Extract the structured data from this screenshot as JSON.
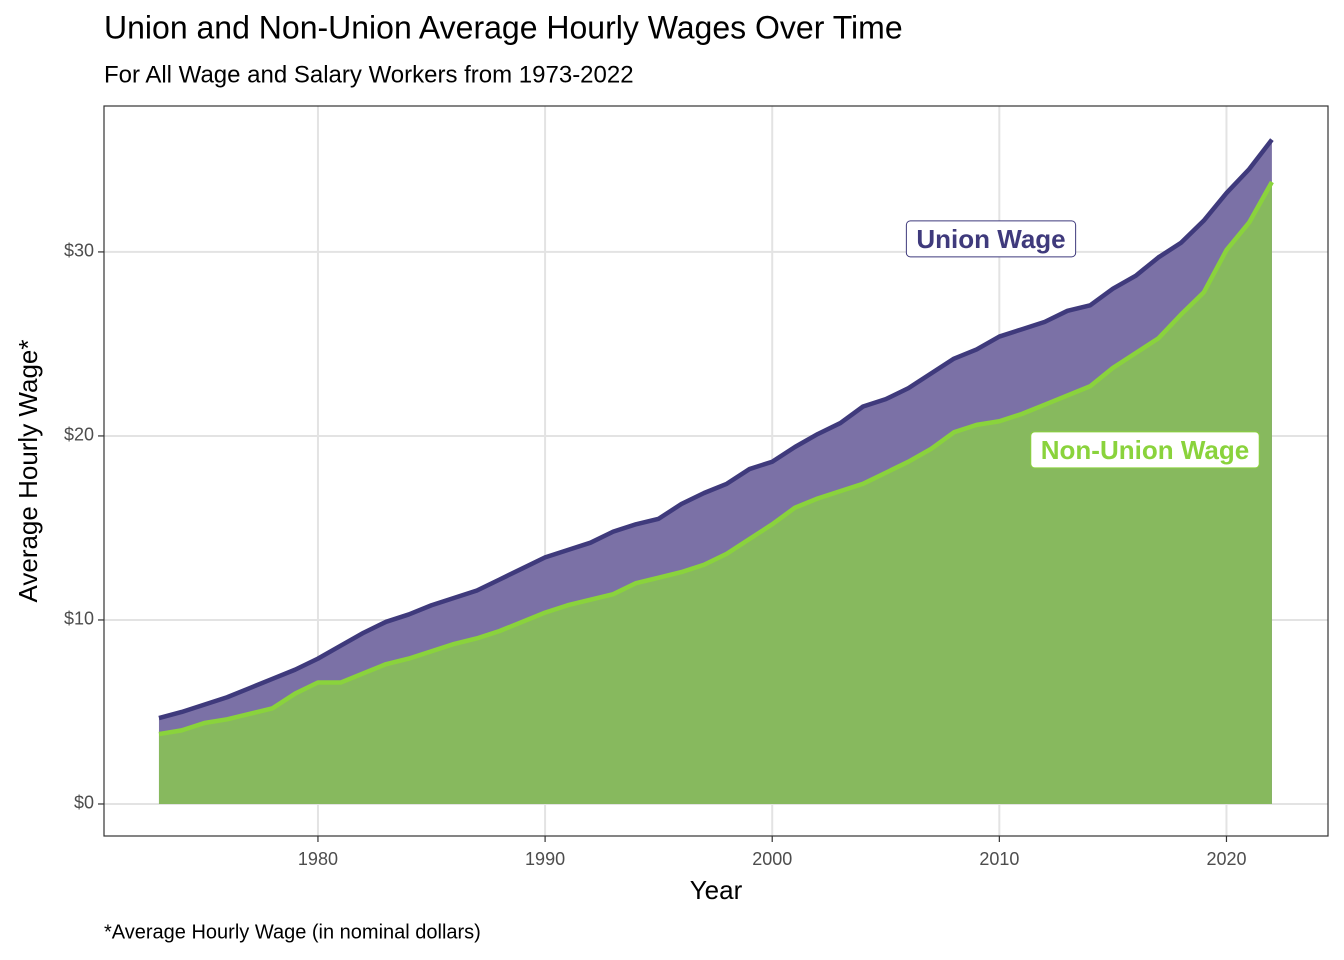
{
  "chart_data": {
    "type": "area",
    "title": "Union and Non-Union Average Hourly Wages Over Time",
    "subtitle": "For All Wage and Salary Workers from 1973-2022",
    "x_label": "Year",
    "y_label": "Average Hourly Wage*",
    "caption": "*Average Hourly Wage (in nominal dollars)",
    "x": [
      1973,
      1974,
      1975,
      1976,
      1977,
      1978,
      1979,
      1980,
      1981,
      1982,
      1983,
      1984,
      1985,
      1986,
      1987,
      1988,
      1989,
      1990,
      1991,
      1992,
      1993,
      1994,
      1995,
      1996,
      1997,
      1998,
      1999,
      2000,
      2001,
      2002,
      2003,
      2004,
      2005,
      2006,
      2007,
      2008,
      2009,
      2010,
      2011,
      2012,
      2013,
      2014,
      2015,
      2016,
      2017,
      2018,
      2019,
      2020,
      2021,
      2022
    ],
    "series": [
      {
        "name": "Union Wage",
        "color": "#3f3a7c",
        "fill": "#7b71a6",
        "values": [
          4.67,
          5.0,
          5.4,
          5.8,
          6.3,
          6.8,
          7.3,
          7.9,
          8.6,
          9.3,
          9.9,
          10.3,
          10.8,
          11.2,
          11.6,
          12.2,
          12.8,
          13.4,
          13.8,
          14.2,
          14.8,
          15.2,
          15.5,
          16.3,
          16.9,
          17.4,
          18.2,
          18.6,
          19.4,
          20.1,
          20.7,
          21.6,
          22.0,
          22.6,
          23.4,
          24.2,
          24.7,
          25.4,
          25.8,
          26.2,
          26.8,
          27.1,
          28.0,
          28.7,
          29.7,
          30.5,
          31.7,
          33.2,
          34.5,
          36.1
        ]
      },
      {
        "name": "Non-Union Wage",
        "color": "#8ad33c",
        "fill": "#87b95e",
        "values": [
          3.8,
          4.0,
          4.4,
          4.6,
          4.9,
          5.2,
          6.0,
          6.6,
          6.6,
          7.1,
          7.6,
          7.9,
          8.3,
          8.7,
          9.0,
          9.4,
          9.9,
          10.4,
          10.8,
          11.1,
          11.4,
          12.0,
          12.3,
          12.6,
          13.0,
          13.6,
          14.4,
          15.2,
          16.1,
          16.6,
          17.0,
          17.4,
          18.0,
          18.6,
          19.3,
          20.2,
          20.6,
          20.8,
          21.2,
          21.7,
          22.2,
          22.7,
          23.7,
          24.5,
          25.3,
          26.6,
          27.8,
          30.1,
          31.6,
          33.8
        ]
      }
    ],
    "xlim": [
      1970.58,
      2024.47
    ],
    "xticks": [
      1980,
      1990,
      2000,
      2010,
      2020
    ],
    "ylim": [
      -1.74,
      37.93
    ],
    "yticks": [
      {
        "value": 0,
        "label": "$0"
      },
      {
        "value": 10,
        "label": "$10"
      },
      {
        "value": 20,
        "label": "$20"
      },
      {
        "value": 30,
        "label": "$30"
      }
    ],
    "grid": true
  }
}
